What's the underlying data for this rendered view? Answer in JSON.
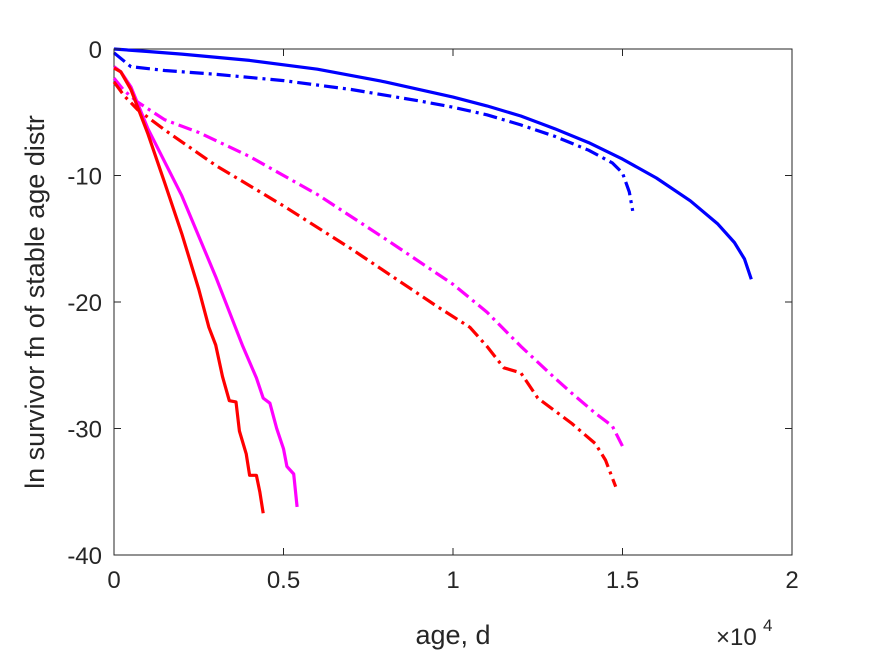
{
  "chart_data": {
    "type": "line",
    "title": "",
    "xlabel": "age, d",
    "ylabel": "ln survivor fn of stable age distr",
    "x_multiplier_label": "×10",
    "x_multiplier_exponent": "4",
    "xlim": [
      0,
      20000
    ],
    "ylim": [
      -40,
      0
    ],
    "xticks": [
      0,
      5000,
      10000,
      15000,
      20000
    ],
    "xtick_labels": [
      "0",
      "0.5",
      "1",
      "1.5",
      "2"
    ],
    "yticks": [
      0,
      -10,
      -20,
      -30,
      -40
    ],
    "ytick_labels": [
      "0",
      "-10",
      "-20",
      "-30",
      "-40"
    ],
    "grid": false,
    "legend": "none",
    "series": [
      {
        "color": "#0000ff",
        "style": "solid",
        "points": [
          [
            0,
            0
          ],
          [
            1000,
            -0.2
          ],
          [
            2000,
            -0.4
          ],
          [
            4000,
            -0.9
          ],
          [
            6000,
            -1.6
          ],
          [
            8000,
            -2.6
          ],
          [
            10000,
            -3.8
          ],
          [
            11000,
            -4.5
          ],
          [
            12000,
            -5.3
          ],
          [
            13000,
            -6.3
          ],
          [
            14000,
            -7.4
          ],
          [
            15000,
            -8.7
          ],
          [
            16000,
            -10.2
          ],
          [
            17000,
            -12.0
          ],
          [
            17800,
            -13.8
          ],
          [
            18300,
            -15.3
          ],
          [
            18600,
            -16.6
          ],
          [
            18800,
            -18.2
          ]
        ]
      },
      {
        "color": "#0000ff",
        "style": "dashdot",
        "points": [
          [
            0,
            -0.3
          ],
          [
            500,
            -1.4
          ],
          [
            1500,
            -1.7
          ],
          [
            3000,
            -2.0
          ],
          [
            5000,
            -2.5
          ],
          [
            7000,
            -3.2
          ],
          [
            9000,
            -4.1
          ],
          [
            10000,
            -4.6
          ],
          [
            11000,
            -5.2
          ],
          [
            12000,
            -6.0
          ],
          [
            13000,
            -6.9
          ],
          [
            14000,
            -8.0
          ],
          [
            14700,
            -9.0
          ],
          [
            15000,
            -9.8
          ],
          [
            15200,
            -11.3
          ],
          [
            15300,
            -12.8
          ]
        ]
      },
      {
        "color": "#ff00ff",
        "style": "dashdot",
        "points": [
          [
            0,
            -2.3
          ],
          [
            300,
            -3.3
          ],
          [
            700,
            -4.2
          ],
          [
            1500,
            -5.6
          ],
          [
            2500,
            -6.6
          ],
          [
            4000,
            -8.5
          ],
          [
            6000,
            -11.5
          ],
          [
            8000,
            -15.0
          ],
          [
            10000,
            -18.6
          ],
          [
            11000,
            -20.8
          ],
          [
            12000,
            -23.5
          ],
          [
            13000,
            -26.0
          ],
          [
            13500,
            -27.2
          ],
          [
            14200,
            -28.8
          ],
          [
            14700,
            -29.8
          ],
          [
            15000,
            -31.4
          ]
        ]
      },
      {
        "color": "#ff0000",
        "style": "dashdot",
        "points": [
          [
            0,
            -2.6
          ],
          [
            300,
            -3.7
          ],
          [
            700,
            -4.8
          ],
          [
            1500,
            -6.4
          ],
          [
            3000,
            -9.2
          ],
          [
            5000,
            -12.4
          ],
          [
            7000,
            -15.8
          ],
          [
            9000,
            -19.4
          ],
          [
            9500,
            -20.3
          ],
          [
            10500,
            -22.0
          ],
          [
            11000,
            -23.5
          ],
          [
            11500,
            -25.2
          ],
          [
            12000,
            -25.6
          ],
          [
            12500,
            -27.6
          ],
          [
            13500,
            -29.6
          ],
          [
            14200,
            -31.2
          ],
          [
            14500,
            -32.5
          ],
          [
            14800,
            -34.6
          ]
        ]
      },
      {
        "color": "#ff00ff",
        "style": "solid",
        "points": [
          [
            0,
            -1.4
          ],
          [
            200,
            -1.8
          ],
          [
            500,
            -3.0
          ],
          [
            1000,
            -6.3
          ],
          [
            2000,
            -11.6
          ],
          [
            3000,
            -18.0
          ],
          [
            3800,
            -23.5
          ],
          [
            4200,
            -26.0
          ],
          [
            4400,
            -27.6
          ],
          [
            4600,
            -28.0
          ],
          [
            4800,
            -30.0
          ],
          [
            5000,
            -31.6
          ],
          [
            5100,
            -33.0
          ],
          [
            5300,
            -33.6
          ],
          [
            5400,
            -36.2
          ]
        ]
      },
      {
        "color": "#ff0000",
        "style": "solid",
        "points": [
          [
            0,
            -1.5
          ],
          [
            200,
            -1.8
          ],
          [
            500,
            -3.2
          ],
          [
            1000,
            -6.7
          ],
          [
            1500,
            -10.6
          ],
          [
            2000,
            -14.6
          ],
          [
            2500,
            -19.0
          ],
          [
            2800,
            -22.0
          ],
          [
            3000,
            -23.4
          ],
          [
            3200,
            -25.9
          ],
          [
            3400,
            -27.8
          ],
          [
            3600,
            -27.9
          ],
          [
            3700,
            -30.2
          ],
          [
            3900,
            -32.0
          ],
          [
            4000,
            -33.7
          ],
          [
            4200,
            -33.7
          ],
          [
            4300,
            -35.0
          ],
          [
            4400,
            -36.7
          ]
        ]
      }
    ]
  }
}
